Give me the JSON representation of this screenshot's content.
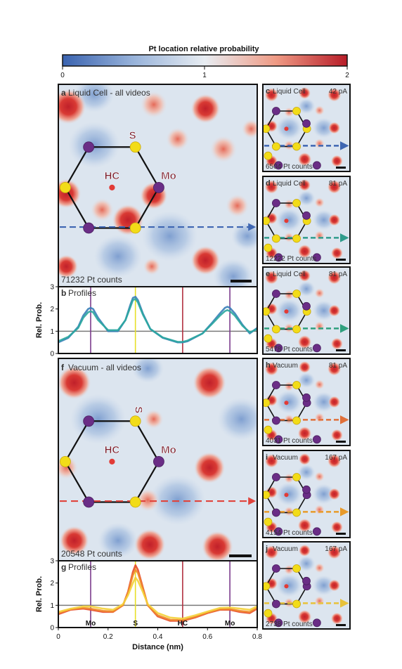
{
  "colorbar": {
    "title": "Pt location relative probability",
    "ticks": [
      "0",
      "1",
      "2"
    ],
    "colors": {
      "low": "#3a63b0",
      "mid": "#e8edf2",
      "high": "#b71c28"
    }
  },
  "panels": {
    "a": {
      "letter": "a",
      "title": "Liquid Cell - all videos",
      "counts": "71232 Pt counts",
      "labels": {
        "s": "S",
        "mo": "Mo",
        "hc": "HC"
      },
      "arrow_color": "#3e66b2"
    },
    "f": {
      "letter": "f",
      "title": "Vacuum - all videos",
      "counts": "20548 Pt counts",
      "labels": {
        "s": "S",
        "mo": "Mo",
        "hc": "HC"
      },
      "arrow_color": "#e0443c"
    },
    "small": [
      {
        "letter": "c",
        "title": "Liquid Cell",
        "current": "42 pA",
        "counts": "6504 Pt counts",
        "arrow_color": "#3e66b2"
      },
      {
        "letter": "d",
        "title": "Liquid Cell",
        "current": "81 pA",
        "counts": "12222 Pt counts",
        "arrow_color": "#2f9c8c"
      },
      {
        "letter": "e",
        "title": "Liquid Cell",
        "current": "81 pA",
        "counts": "5478 Pt counts",
        "arrow_color": "#2fa07e"
      },
      {
        "letter": "h",
        "title": "Vacuum",
        "current": "81 pA",
        "counts": "4031 Pt counts",
        "arrow_color": "#e0703a"
      },
      {
        "letter": "i",
        "title": "Vacuum",
        "current": "167 pA",
        "counts": "4154 Pt counts",
        "arrow_color": "#e89a2a"
      },
      {
        "letter": "j",
        "title": "Vacuum",
        "current": "167 pA",
        "counts": "2738 Pt counts",
        "arrow_color": "#e8c23a"
      }
    ]
  },
  "chart_data": [
    {
      "panel": "b",
      "type": "line",
      "title": "Profiles",
      "ylabel": "Rel. Prob.",
      "xlim": [
        0,
        0.8
      ],
      "ylim": [
        0,
        3
      ],
      "yticks": [
        "0",
        "1",
        "2",
        "3"
      ],
      "series": [
        {
          "color": "#3a7fb8",
          "x": [
            0,
            0.04,
            0.08,
            0.1,
            0.12,
            0.13,
            0.14,
            0.16,
            0.2,
            0.24,
            0.27,
            0.29,
            0.3,
            0.31,
            0.32,
            0.34,
            0.37,
            0.42,
            0.48,
            0.5,
            0.52,
            0.58,
            0.62,
            0.65,
            0.67,
            0.68,
            0.69,
            0.71,
            0.74,
            0.77,
            0.8
          ],
          "y": [
            0.5,
            0.7,
            1.2,
            1.7,
            2.0,
            2.05,
            2.0,
            1.6,
            1.0,
            1.0,
            1.5,
            2.2,
            2.5,
            2.55,
            2.4,
            1.8,
            1.1,
            0.7,
            0.5,
            0.5,
            0.55,
            0.9,
            1.4,
            1.8,
            2.05,
            2.1,
            2.05,
            1.8,
            1.3,
            0.9,
            1.15
          ]
        },
        {
          "color": "#2ba7a0",
          "x": [
            0,
            0.04,
            0.08,
            0.1,
            0.12,
            0.13,
            0.14,
            0.16,
            0.2,
            0.24,
            0.27,
            0.29,
            0.3,
            0.31,
            0.32,
            0.34,
            0.37,
            0.42,
            0.48,
            0.5,
            0.52,
            0.58,
            0.62,
            0.65,
            0.67,
            0.68,
            0.69,
            0.71,
            0.74,
            0.77,
            0.8
          ],
          "y": [
            0.55,
            0.75,
            1.15,
            1.6,
            1.85,
            1.9,
            1.85,
            1.5,
            1.05,
            1.05,
            1.5,
            2.1,
            2.4,
            2.45,
            2.3,
            1.75,
            1.1,
            0.72,
            0.52,
            0.52,
            0.58,
            0.9,
            1.35,
            1.7,
            1.9,
            1.95,
            1.9,
            1.7,
            1.25,
            0.95,
            1.1
          ]
        }
      ],
      "markers": [
        {
          "x": 0.13,
          "color": "#7b3b8c"
        },
        {
          "x": 0.31,
          "color": "#e6e02a"
        },
        {
          "x": 0.5,
          "color": "#b23040"
        },
        {
          "x": 0.69,
          "color": "#7b3b8c"
        }
      ],
      "reference_line": 1
    },
    {
      "panel": "g",
      "type": "line",
      "title": "Profiles",
      "xlabel": "Distance (nm)",
      "ylabel": "Rel. Prob.",
      "xlim": [
        0,
        0.8
      ],
      "ylim": [
        0,
        3
      ],
      "xticks": [
        "0",
        "0.2",
        "0.4",
        "0.6",
        "0.8"
      ],
      "yticks": [
        "0",
        "1",
        "2",
        "3"
      ],
      "marker_labels": [
        "Mo",
        "S",
        "HC",
        "Mo"
      ],
      "series": [
        {
          "color": "#e64a2a",
          "x": [
            0,
            0.05,
            0.1,
            0.13,
            0.18,
            0.22,
            0.26,
            0.28,
            0.3,
            0.31,
            0.32,
            0.34,
            0.36,
            0.4,
            0.45,
            0.5,
            0.55,
            0.6,
            0.65,
            0.69,
            0.73,
            0.77,
            0.8
          ],
          "y": [
            0.6,
            0.8,
            0.85,
            0.8,
            0.7,
            0.7,
            1.0,
            1.6,
            2.5,
            2.8,
            2.6,
            1.8,
            1.0,
            0.5,
            0.3,
            0.3,
            0.45,
            0.65,
            0.8,
            0.8,
            0.7,
            0.65,
            0.85
          ]
        },
        {
          "color": "#f08a2a",
          "x": [
            0,
            0.05,
            0.1,
            0.13,
            0.18,
            0.22,
            0.26,
            0.28,
            0.3,
            0.31,
            0.32,
            0.34,
            0.36,
            0.4,
            0.45,
            0.5,
            0.55,
            0.6,
            0.65,
            0.69,
            0.73,
            0.77,
            0.8
          ],
          "y": [
            0.65,
            0.82,
            0.88,
            0.85,
            0.75,
            0.72,
            1.0,
            1.55,
            2.35,
            2.6,
            2.45,
            1.75,
            1.0,
            0.55,
            0.35,
            0.33,
            0.48,
            0.68,
            0.82,
            0.83,
            0.75,
            0.7,
            0.9
          ]
        },
        {
          "color": "#f4d23a",
          "x": [
            0,
            0.05,
            0.1,
            0.13,
            0.18,
            0.22,
            0.26,
            0.28,
            0.3,
            0.31,
            0.32,
            0.34,
            0.36,
            0.4,
            0.45,
            0.5,
            0.55,
            0.6,
            0.65,
            0.69,
            0.73,
            0.77,
            0.8
          ],
          "y": [
            0.7,
            0.85,
            0.95,
            0.95,
            0.85,
            0.8,
            1.05,
            1.45,
            2.0,
            2.25,
            2.1,
            1.6,
            1.05,
            0.65,
            0.45,
            0.4,
            0.55,
            0.72,
            0.88,
            0.9,
            0.85,
            0.8,
            0.95
          ]
        }
      ],
      "markers": [
        {
          "x": 0.13,
          "color": "#7b3b8c"
        },
        {
          "x": 0.31,
          "color": "#e6e02a"
        },
        {
          "x": 0.5,
          "color": "#b23040"
        },
        {
          "x": 0.69,
          "color": "#7b3b8c"
        }
      ],
      "reference_line": 1
    }
  ]
}
